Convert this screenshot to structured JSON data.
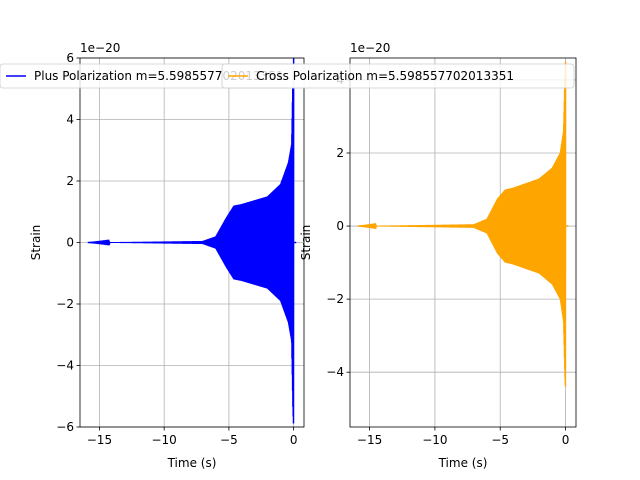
{
  "chart_data": [
    {
      "type": "line",
      "series": [
        {
          "name": "Plus Polarization m=5.598557702013351",
          "color": "#0000ff"
        }
      ],
      "xlabel": "Time (s)",
      "ylabel": "Strain",
      "y_offset_label": "1e−20",
      "xlim": [
        -16.5,
        0.8
      ],
      "ylim": [
        -6.0,
        6.0
      ],
      "xticks": [
        -15,
        -10,
        -5,
        0
      ],
      "yticks": [
        -6,
        -4,
        -2,
        0,
        2,
        4,
        6
      ],
      "xtick_labels": [
        "−15",
        "−10",
        "−5",
        "0"
      ],
      "ytick_labels": [
        "−6",
        "−4",
        "−2",
        "0",
        "2",
        "4",
        "6"
      ],
      "grid": true,
      "legend_placement": "top-center",
      "signal": {
        "t_start": -15.9,
        "t_end": 0.0,
        "envelope": [
          [
            -15.9,
            0.0
          ],
          [
            -7.0,
            0.05
          ],
          [
            -6.0,
            0.2
          ],
          [
            -5.2,
            0.8
          ],
          [
            -4.6,
            1.2
          ],
          [
            -4.0,
            1.25
          ],
          [
            -2.0,
            1.5
          ],
          [
            -1.0,
            1.9
          ],
          [
            -0.4,
            2.6
          ],
          [
            -0.15,
            3.2
          ],
          [
            -0.05,
            5.5
          ],
          [
            0.0,
            6.0
          ]
        ]
      }
    },
    {
      "type": "line",
      "series": [
        {
          "name": "Cross Polarization m=5.598557702013351",
          "color": "#ffa500"
        }
      ],
      "xlabel": "Time (s)",
      "ylabel": "Strain",
      "y_offset_label": "1e−20",
      "xlim": [
        -16.5,
        0.8
      ],
      "ylim": [
        -5.5,
        4.6
      ],
      "xticks": [
        -15,
        -10,
        -5,
        0
      ],
      "yticks": [
        -4,
        -2,
        0,
        2,
        4
      ],
      "xtick_labels": [
        "−15",
        "−10",
        "−5",
        "0"
      ],
      "ytick_labels": [
        "−4",
        "−2",
        "0",
        "2",
        "4"
      ],
      "grid": true,
      "legend_placement": "top-center",
      "signal": {
        "t_start": -15.9,
        "t_end": 0.0,
        "envelope": [
          [
            -15.9,
            0.0
          ],
          [
            -7.0,
            0.05
          ],
          [
            -6.0,
            0.2
          ],
          [
            -5.2,
            0.75
          ],
          [
            -4.6,
            1.0
          ],
          [
            -4.0,
            1.05
          ],
          [
            -2.0,
            1.3
          ],
          [
            -1.0,
            1.6
          ],
          [
            -0.4,
            2.0
          ],
          [
            -0.15,
            2.6
          ],
          [
            -0.05,
            4.0
          ],
          [
            0.0,
            4.5
          ]
        ]
      }
    }
  ]
}
